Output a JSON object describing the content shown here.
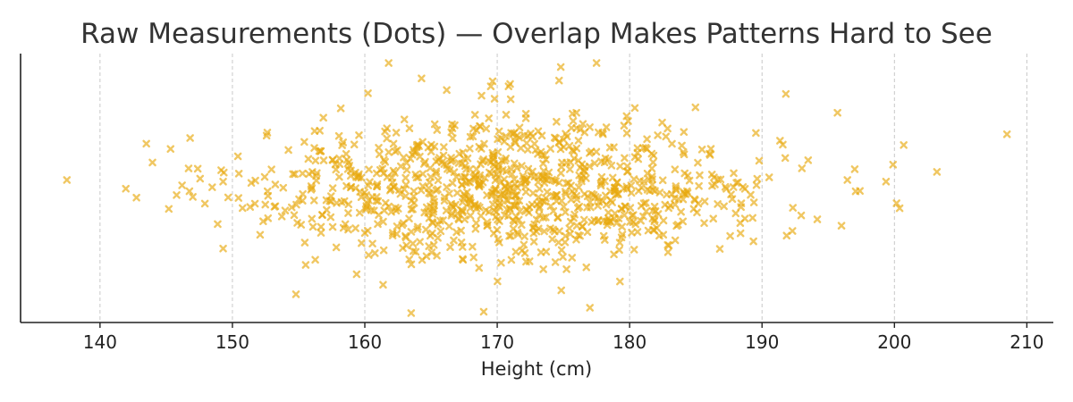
{
  "chart_data": {
    "type": "scatter",
    "title": "Raw Measurements (Dots) — Overlap Makes Patterns Hard to See",
    "xlabel": "Height (cm)",
    "ylabel": "",
    "xlim": [
      134,
      212
    ],
    "ylim": [
      -1,
      1
    ],
    "xticks": [
      "140",
      "150",
      "160",
      "170",
      "180",
      "190",
      "200",
      "210"
    ],
    "grid": "vertical dashed",
    "marker": "x",
    "marker_color": "#E8A90E",
    "legend": "none",
    "n_points": 1000,
    "distribution": {
      "mean": 171,
      "sd": 10
    },
    "notable_points": [
      {
        "x": 137.5,
        "y": 0.06
      },
      {
        "x": 143.5,
        "y": 0.33
      },
      {
        "x": 208.5,
        "y": 0.4
      },
      {
        "x": 200.7,
        "y": 0.32
      },
      {
        "x": 197.0,
        "y": 0.14
      },
      {
        "x": 196.0,
        "y": -0.28
      },
      {
        "x": 195.7,
        "y": 0.56
      },
      {
        "x": 163.5,
        "y": -0.93
      },
      {
        "x": 161.8,
        "y": 0.93
      },
      {
        "x": 177.5,
        "y": 0.93
      },
      {
        "x": 174.8,
        "y": 0.9
      },
      {
        "x": 177.0,
        "y": -0.89
      },
      {
        "x": 154.8,
        "y": -0.79
      },
      {
        "x": 149.3,
        "y": -0.45
      },
      {
        "x": 191.8,
        "y": 0.7
      }
    ]
  }
}
